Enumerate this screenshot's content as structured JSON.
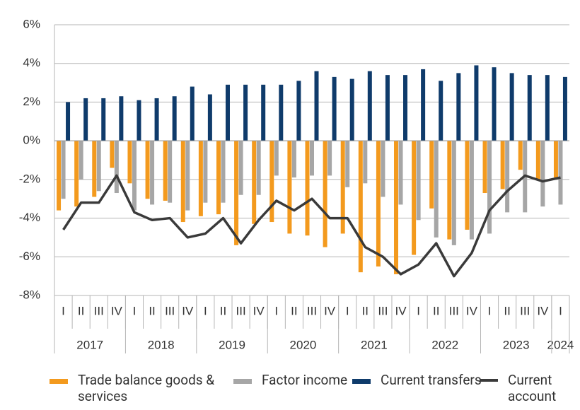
{
  "chart_data": {
    "type": "bar-line",
    "categories": [
      "I",
      "II",
      "III",
      "IV",
      "I",
      "II",
      "III",
      "IV",
      "I",
      "II",
      "III",
      "IV",
      "I",
      "II",
      "III",
      "IV",
      "I",
      "II",
      "III",
      "IV",
      "I",
      "II",
      "III",
      "IV",
      "I",
      "II",
      "III",
      "IV",
      "I"
    ],
    "years": [
      "2017",
      "2018",
      "2019",
      "2020",
      "2021",
      "2022",
      "2023",
      "2024"
    ],
    "series": [
      {
        "name": "Trade balance goods & services",
        "type": "bar",
        "color": "#f39a1e",
        "values": [
          -3.6,
          -3.4,
          -2.9,
          -1.4,
          -2.2,
          -3.0,
          -3.1,
          -4.2,
          -3.9,
          -3.8,
          -5.4,
          -4.3,
          -4.2,
          -4.8,
          -4.9,
          -5.5,
          -4.8,
          -6.8,
          -6.5,
          -6.9,
          -5.9,
          -3.5,
          -5.1,
          -4.6,
          -2.7,
          -2.5,
          -1.5,
          -2.0,
          -1.9
        ]
      },
      {
        "name": "Factor income",
        "type": "bar",
        "color": "#a6a6a6",
        "values": [
          -3.0,
          -2.0,
          -2.6,
          -2.7,
          -3.6,
          -3.3,
          -3.2,
          -3.6,
          -3.2,
          -3.2,
          -2.8,
          -2.8,
          -1.8,
          -1.9,
          -1.8,
          -1.8,
          -2.4,
          -2.2,
          -2.9,
          -3.3,
          -4.1,
          -5.0,
          -5.4,
          -5.1,
          -4.8,
          -3.7,
          -3.7,
          -3.4,
          -3.3
        ]
      },
      {
        "name": "Current transfers",
        "type": "bar",
        "color": "#0f3b6b",
        "values": [
          2.0,
          2.2,
          2.2,
          2.3,
          2.1,
          2.2,
          2.3,
          2.8,
          2.4,
          2.9,
          2.9,
          2.9,
          2.9,
          3.1,
          3.6,
          3.3,
          3.2,
          3.6,
          3.4,
          3.4,
          3.7,
          3.1,
          3.5,
          3.9,
          3.8,
          3.5,
          3.4,
          3.4,
          3.3
        ]
      },
      {
        "name": "Current account",
        "type": "line",
        "color": "#3a3a3a",
        "values": [
          -4.6,
          -3.2,
          -3.2,
          -1.8,
          -3.7,
          -4.1,
          -4.0,
          -5.0,
          -4.8,
          -4.0,
          -5.3,
          -4.1,
          -3.1,
          -3.6,
          -3.0,
          -4.0,
          -4.0,
          -5.5,
          -6.0,
          -6.9,
          -6.4,
          -5.3,
          -7.0,
          -5.8,
          -3.6,
          -2.6,
          -1.8,
          -2.1,
          -1.9
        ]
      }
    ],
    "ylim": [
      -8,
      6
    ],
    "yticks": [
      {
        "value": -8,
        "label": "-8%"
      },
      {
        "value": -6,
        "label": "-6%"
      },
      {
        "value": -4,
        "label": "-4%"
      },
      {
        "value": -2,
        "label": "-2%"
      },
      {
        "value": 0,
        "label": "0%"
      },
      {
        "value": 2,
        "label": "2%"
      },
      {
        "value": 4,
        "label": "4%"
      },
      {
        "value": 6,
        "label": "6%"
      }
    ],
    "grid": true
  }
}
